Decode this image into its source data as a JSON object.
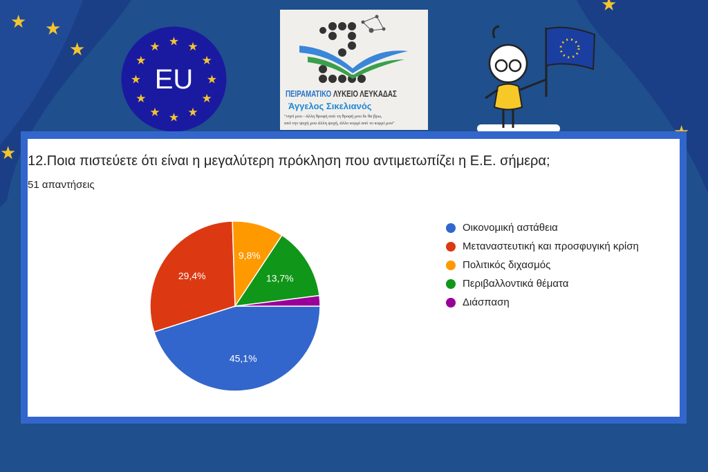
{
  "badge": {
    "text": "EU",
    "color": "#1a1aa0"
  },
  "school_logo": {
    "line1a": "ΠΕΙΡΑΜΑΤΙΚΟ",
    "line1b": "ΛΥΚΕΙΟ ΛΕΥΚΑΔΑΣ",
    "line2": "Άγγελος Σικελιανός",
    "quote1": "\"νησί μου - άλλη θροφή από τη θροφή μου δε θα βρω,",
    "quote2": "από την ψυχή μου άλλη ψυχή, άλλο κορμί από το κορμί μου\""
  },
  "question": {
    "title": "12.Ποια πιστεύετε ότι είναι η μεγαλύτερη πρόκληση που αντιμετωπίζει η Ε.Ε. σήμερα;",
    "responses": "51 απαντήσεις"
  },
  "chart_data": {
    "type": "pie",
    "start_angle": "3 o'clock, clockwise",
    "legend_position": "right",
    "slices": [
      {
        "label": "Οικονομική αστάθεια",
        "value": 45.1,
        "display": "45,1%",
        "color": "#3366cc"
      },
      {
        "label": "Μεταναστευτική και προσφυγική κρίση",
        "value": 29.4,
        "display": "29,4%",
        "color": "#dc3912"
      },
      {
        "label": "Πολιτικός διχασμός",
        "value": 9.8,
        "display": "9,8%",
        "color": "#ff9900"
      },
      {
        "label": "Περιβαλλοντικά θέματα",
        "value": 13.7,
        "display": "13,7%",
        "color": "#109618"
      },
      {
        "label": "Διάσπαση",
        "value": 2.0,
        "display": "",
        "color": "#990099"
      }
    ]
  }
}
